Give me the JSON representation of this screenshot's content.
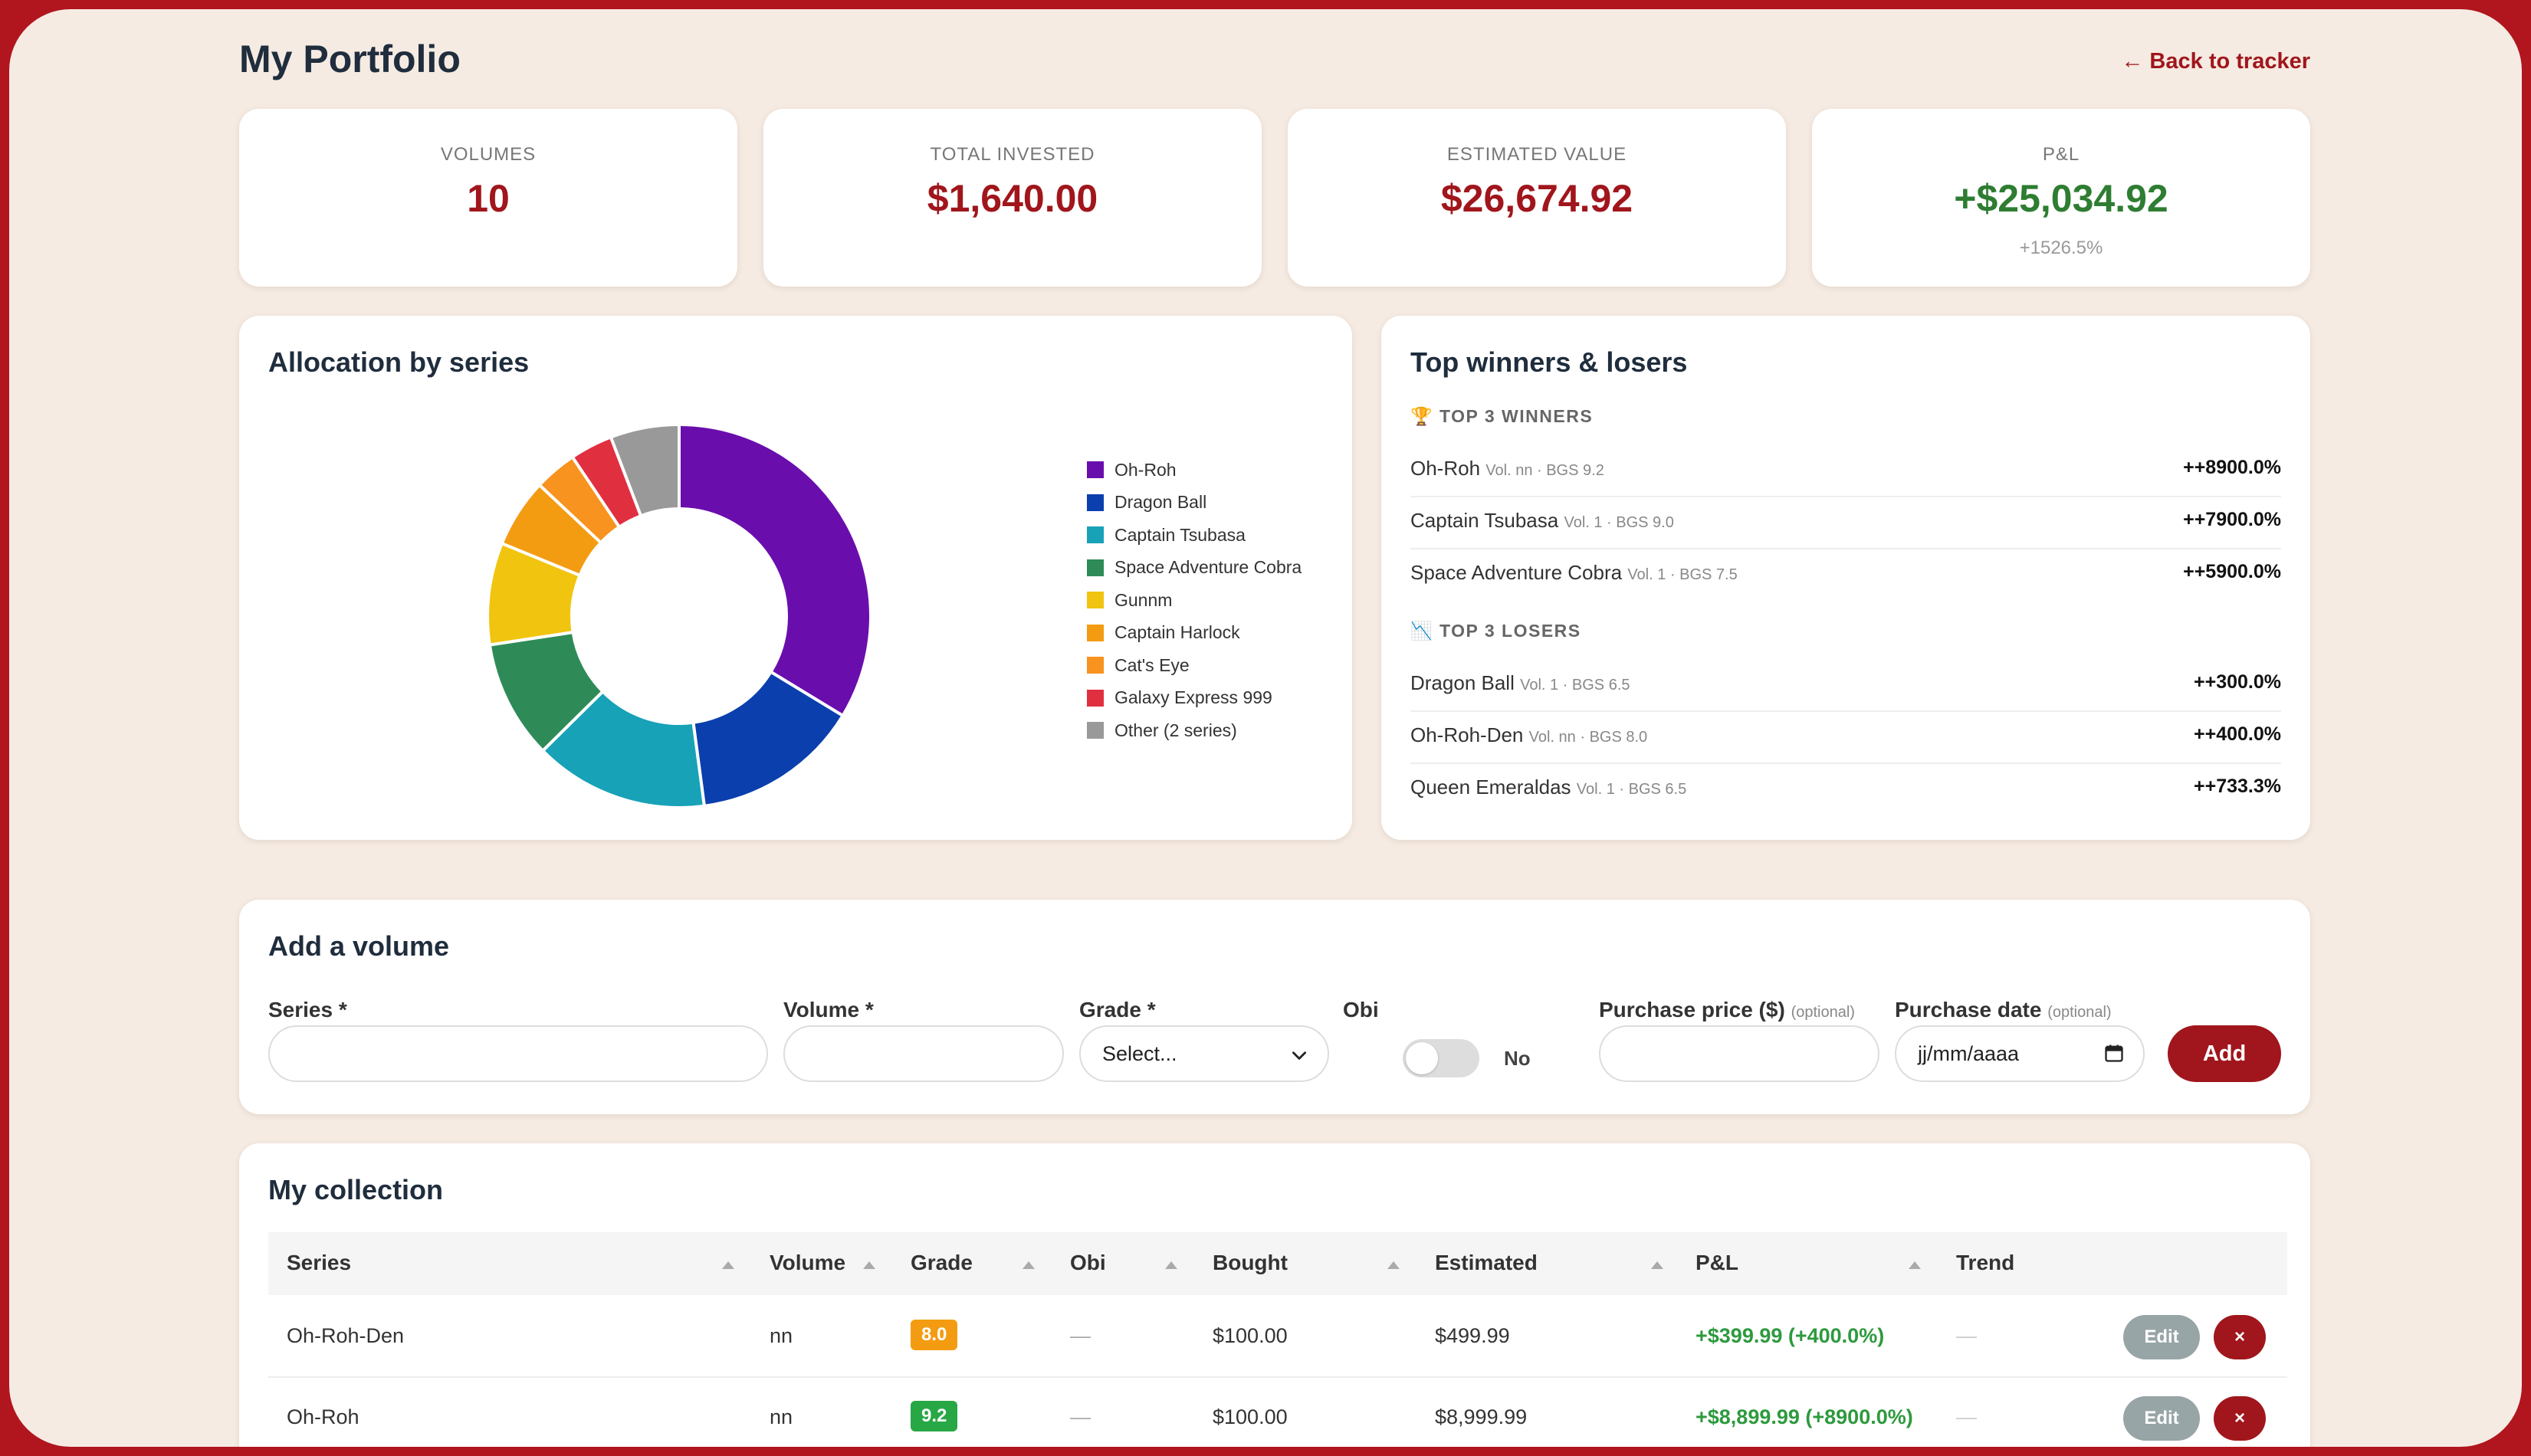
{
  "header": {
    "title": "My Portfolio",
    "back_link": "← Back to tracker"
  },
  "stats": [
    {
      "label": "VOLUMES",
      "value": "10",
      "sub": ""
    },
    {
      "label": "TOTAL INVESTED",
      "value": "$1,640.00",
      "sub": ""
    },
    {
      "label": "ESTIMATED VALUE",
      "value": "$26,674.92",
      "sub": ""
    },
    {
      "label": "P&L",
      "value": "+$25,034.92",
      "sub": "+1526.5%"
    }
  ],
  "allocation": {
    "title": "Allocation by series",
    "chart_data": {
      "type": "pie",
      "categories": [
        "Oh-Roh",
        "Dragon Ball",
        "Captain Tsubasa",
        "Space Adventure Cobra",
        "Gunnm",
        "Captain Harlock",
        "Cat's Eye",
        "Galaxy Express 999",
        "Other (2 series)"
      ],
      "values": [
        33.7,
        14.2,
        14.7,
        10.0,
        8.6,
        5.8,
        3.6,
        3.6,
        5.8
      ],
      "colors": [
        "#6a0dad",
        "#0b3fae",
        "#17a2b8",
        "#2e8b57",
        "#f1c40f",
        "#f39c12",
        "#f7931e",
        "#e03040",
        "#999999"
      ],
      "legend": "right"
    }
  },
  "winners_losers": {
    "title": "Top winners & losers",
    "winners_heading": "🏆 TOP 3 WINNERS",
    "losers_heading": "📉 TOP 3 LOSERS",
    "winners": [
      {
        "series": "Oh-Roh",
        "meta": "Vol. nn · BGS 9.2",
        "value": "++8900.0%"
      },
      {
        "series": "Captain Tsubasa",
        "meta": "Vol. 1 · BGS 9.0",
        "value": "++7900.0%"
      },
      {
        "series": "Space Adventure Cobra",
        "meta": "Vol. 1 · BGS 7.5",
        "value": "++5900.0%"
      }
    ],
    "losers": [
      {
        "series": "Dragon Ball",
        "meta": "Vol. 1 · BGS 6.5",
        "value": "++300.0%"
      },
      {
        "series": "Oh-Roh-Den",
        "meta": "Vol. nn · BGS 8.0",
        "value": "++400.0%"
      },
      {
        "series": "Queen Emeraldas",
        "meta": "Vol. 1 · BGS 6.5",
        "value": "++733.3%"
      }
    ]
  },
  "add_form": {
    "title": "Add a volume",
    "series_label": "Series *",
    "volume_label": "Volume *",
    "grade_label": "Grade *",
    "grade_value": "Select...",
    "obi_label": "Obi",
    "obi_value": "No",
    "price_label": "Purchase price ($)",
    "price_optional": "(optional)",
    "date_label": "Purchase date",
    "date_optional": "(optional)",
    "date_value": "jj/mm/aaaa",
    "add_button": "Add"
  },
  "collection": {
    "title": "My collection",
    "columns": [
      "Series",
      "Volume",
      "Grade",
      "Obi",
      "Bought",
      "Estimated",
      "P&L",
      "Trend"
    ],
    "rows": [
      {
        "series": "Oh-Roh-Den",
        "volume": "nn",
        "grade": "8.0",
        "grade_color": "#f39c12",
        "obi": "—",
        "bought": "$100.00",
        "estimated": "$499.99",
        "pl": "+$399.99 (+400.0%)",
        "trend": "—",
        "edit": "Edit",
        "delete": "×"
      },
      {
        "series": "Oh-Roh",
        "volume": "nn",
        "grade": "9.2",
        "grade_color": "#28a745",
        "obi": "—",
        "bought": "$100.00",
        "estimated": "$8,999.99",
        "pl": "+$8,899.99 (+8900.0%)",
        "trend": "—",
        "edit": "Edit",
        "delete": "×"
      }
    ]
  }
}
